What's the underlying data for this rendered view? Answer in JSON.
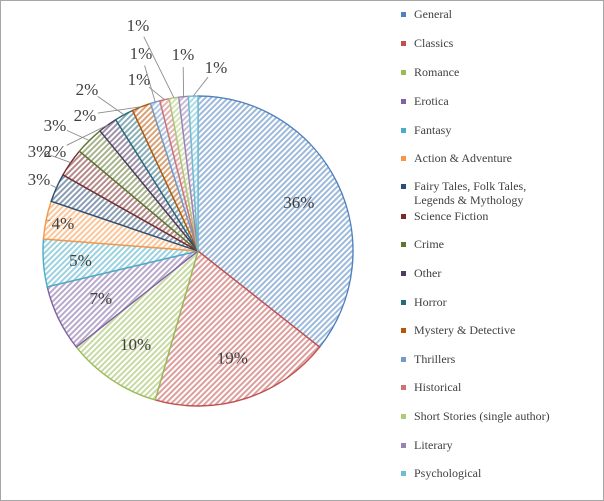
{
  "chart_data": {
    "type": "pie",
    "title": "",
    "start_angle_deg": 0,
    "direction": "clockwise",
    "pattern": "dense diagonal hatching",
    "legend_position": "right",
    "slices": [
      {
        "label": "General",
        "value": 36,
        "display": "36%",
        "color": "#4f81bd"
      },
      {
        "label": "Classics",
        "value": 19,
        "display": "19%",
        "color": "#c0504d"
      },
      {
        "label": "Romance",
        "value": 10,
        "display": "10%",
        "color": "#9bbb59"
      },
      {
        "label": "Erotica",
        "value": 7,
        "display": "7%",
        "color": "#8064a2"
      },
      {
        "label": "Fantasy",
        "value": 5,
        "display": "5%",
        "color": "#4bacc6"
      },
      {
        "label": "Action & Adventure",
        "value": 4,
        "display": "4%",
        "color": "#f79646"
      },
      {
        "label": "Fairy Tales, Folk Tales, Legends & Mythology",
        "label_lines": [
          "Fairy Tales, Folk Tales,",
          "Legends & Mythology"
        ],
        "value": 3,
        "display": "3%",
        "color": "#2c4d75"
      },
      {
        "label": "Science Fiction",
        "value": 3,
        "display": "3%",
        "color": "#772c2a"
      },
      {
        "label": "Crime",
        "value": 3,
        "display": "3%",
        "color": "#5f7530"
      },
      {
        "label": "Other",
        "value": 2,
        "display": "2%",
        "color": "#4d3b62"
      },
      {
        "label": "Horror",
        "value": 2,
        "display": "2%",
        "color": "#276a7c"
      },
      {
        "label": "Mystery & Detective",
        "value": 2,
        "display": "2%",
        "color": "#b65708"
      },
      {
        "label": "Thrillers",
        "value": 1,
        "display": "1%",
        "color": "#729aca"
      },
      {
        "label": "Historical",
        "value": 1,
        "display": "1%",
        "color": "#cd7371"
      },
      {
        "label": "Short Stories (single author)",
        "value": 1,
        "display": "1%",
        "color": "#afc97a"
      },
      {
        "label": "Literary",
        "value": 1,
        "display": "1%",
        "color": "#9983b5"
      },
      {
        "label": "Psychological",
        "value": 1,
        "display": "1%",
        "color": "#6fbdd1"
      }
    ]
  }
}
